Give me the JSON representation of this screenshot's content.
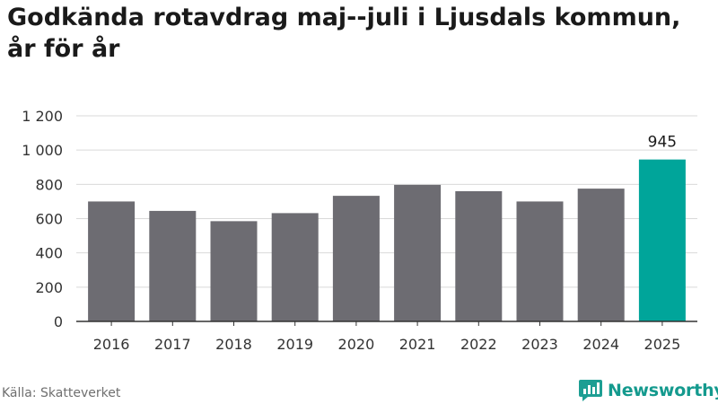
{
  "title": "Godkända rotavdrag maj--juli i Ljusdals kommun, år för år",
  "source": "Källa: Skatteverket",
  "brand": {
    "name": "Newsworthy",
    "icon": "newsworthy-logo-icon",
    "color": "#149a8e"
  },
  "colors": {
    "bar": "#6d6c72",
    "highlight": "#00a59a",
    "grid": "#d9d9d9",
    "axis": "#333333",
    "text": "#333333"
  },
  "chart_data": {
    "type": "bar",
    "categories": [
      "2016",
      "2017",
      "2018",
      "2019",
      "2020",
      "2021",
      "2022",
      "2023",
      "2024",
      "2025"
    ],
    "values": [
      700,
      645,
      585,
      632,
      733,
      797,
      760,
      700,
      775,
      945
    ],
    "highlight_index": 9,
    "data_labels": [
      {
        "index": 9,
        "text": "945"
      }
    ],
    "yticks": [
      {
        "value": 0,
        "label": "0"
      },
      {
        "value": 200,
        "label": "200"
      },
      {
        "value": 400,
        "label": "400"
      },
      {
        "value": 600,
        "label": "600"
      },
      {
        "value": 800,
        "label": "800"
      },
      {
        "value": 1000,
        "label": "1 000"
      },
      {
        "value": 1200,
        "label": "1 200"
      }
    ],
    "ylim": [
      0,
      1200
    ],
    "grid": true,
    "xlabel": "",
    "ylabel": ""
  }
}
